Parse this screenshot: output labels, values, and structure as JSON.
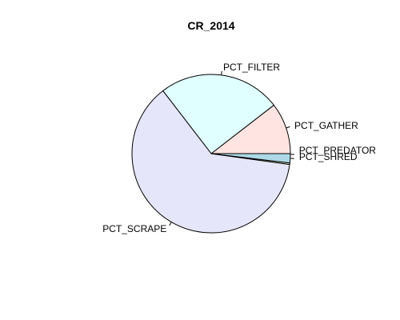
{
  "chart_data": {
    "type": "pie",
    "title": "CR_2014",
    "slices": [
      {
        "label": "PCT_GATHER",
        "value": 10.5,
        "color": "#FFE4E1"
      },
      {
        "label": "PCT_FILTER",
        "value": 25.0,
        "color": "#E0FFFF"
      },
      {
        "label": "PCT_SCRAPE",
        "value": 62.5,
        "color": "#E6E6FA"
      },
      {
        "label": "PCT_SHRED",
        "value": 0.3,
        "color": "#FFF8DC"
      },
      {
        "label": "PCT_PREDATOR",
        "value": 1.9,
        "color": "#ADD8E6"
      }
    ]
  }
}
